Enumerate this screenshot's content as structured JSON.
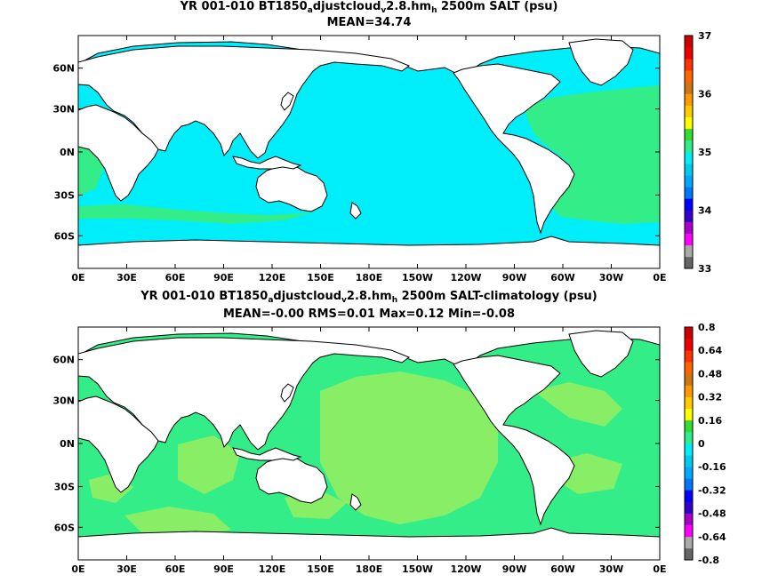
{
  "panels": [
    {
      "title_prefix": "YR 001-010 BT1850",
      "title_sub1": "a",
      "title_mid": "djustcloud",
      "title_sub2": "v",
      "title_mid2": "2.8.hm",
      "title_sub3": "h",
      "title_suffix": " 2500m SALT (psu)",
      "subtitle": "MEAN=34.74",
      "colorbar_labels": [
        "37",
        "36",
        "35",
        "34",
        "33"
      ]
    },
    {
      "title_prefix": "YR 001-010 BT1850",
      "title_sub1": "a",
      "title_mid": "djustcloud",
      "title_sub2": "v",
      "title_mid2": "2.8.hm",
      "title_sub3": "h",
      "title_suffix": " 2500m SALT-climatology (psu)",
      "subtitle": "MEAN=-0.00   RMS=0.01   Max=0.12   Min=-0.08",
      "colorbar_labels": [
        "0.8",
        "0.64",
        "0.48",
        "0.32",
        "0.16",
        "0",
        "-0.16",
        "-0.32",
        "-0.48",
        "-0.64",
        "-0.8"
      ]
    }
  ],
  "lon_labels": [
    "0E",
    "30E",
    "60E",
    "90E",
    "120E",
    "150E",
    "180E",
    "150W",
    "120W",
    "90W",
    "60W",
    "30W",
    "0E"
  ],
  "lat_labels": [
    "60N",
    "30N",
    "0N",
    "30S",
    "60S"
  ],
  "colors": {
    "cyan_fill": "#00eefa",
    "green_fill": "#33ee88",
    "light_green": "#88ee66",
    "land": "#ffffff"
  }
}
